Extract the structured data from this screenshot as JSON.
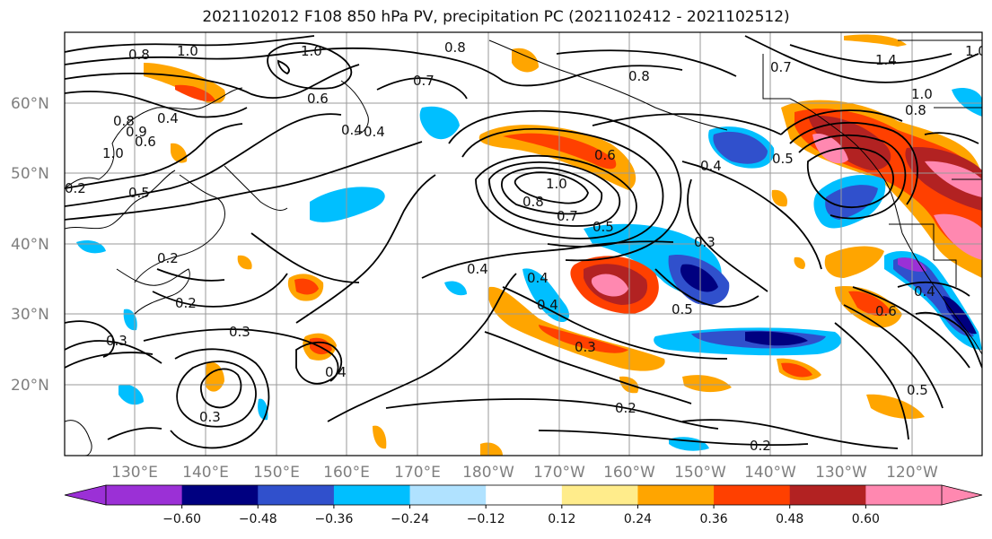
{
  "title": "2021102012 F108 850 hPa PV, precipitation PC (2021102412 - 2021102512)",
  "map": {
    "lat_labels": [
      "60°N",
      "50°N",
      "40°N",
      "30°N",
      "20°N"
    ],
    "lon_labels": [
      "130°E",
      "140°E",
      "150°E",
      "160°E",
      "170°E",
      "180°W",
      "170°W",
      "160°W",
      "150°W",
      "140°W",
      "130°W",
      "120°W"
    ]
  },
  "colorbar": {
    "colors": [
      "#9b30d6",
      "#000080",
      "#3050cc",
      "#00bfff",
      "#b0e2ff",
      "#ffffff",
      "#ffec8b",
      "#ffa500",
      "#ff4000",
      "#b22222",
      "#ff88b0"
    ],
    "tick_labels": [
      "−0.60",
      "−0.48",
      "−0.36",
      "−0.24",
      "−0.12",
      "0.12",
      "0.24",
      "0.36",
      "0.48",
      "0.60"
    ]
  },
  "contour_labels": [
    "0.8",
    "1.0",
    "1.0",
    "0.8",
    "0.7",
    "0.6",
    "0.4",
    "0.8",
    "0.9",
    "0.6",
    "0.4",
    "1.0",
    "0.5",
    "1.0",
    "0.8",
    "0.7",
    "0.6",
    "0.5",
    "0.4",
    "0.3",
    "0.2",
    "0.2",
    "0.3",
    "0.3",
    "0.4",
    "0.4",
    "0.4",
    "0.5",
    "0.3",
    "0.2",
    "0.3",
    "0.2",
    "0.4",
    "0.5",
    "0.6",
    "0.5",
    "0.8",
    "0.7",
    "1.0",
    "0.8",
    "1.4",
    "1.0",
    "0.4",
    "0.4",
    "0.2"
  ]
}
